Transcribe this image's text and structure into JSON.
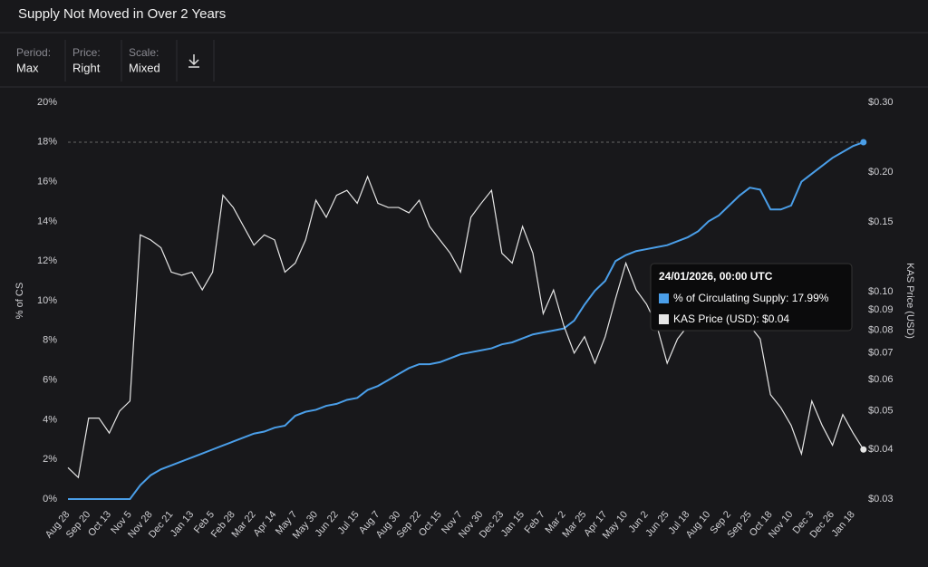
{
  "header": {
    "title": "Supply Not Moved in Over 2 Years",
    "controls": [
      {
        "key": "Period:",
        "value": "Max"
      },
      {
        "key": "Price:",
        "value": "Right"
      },
      {
        "key": "Scale:",
        "value": "Mixed"
      }
    ]
  },
  "chart_data": {
    "type": "line",
    "ylabel": "% of CS",
    "y2label": "KAS Price (USD)",
    "categories": [
      "Aug 28",
      null,
      "Sep 20",
      null,
      "Oct 13",
      null,
      "Nov 5",
      null,
      "Nov 28",
      null,
      "Dec 21",
      null,
      "Jan 13",
      null,
      "Feb 5",
      null,
      "Feb 28",
      null,
      "Mar 22",
      null,
      "Apr 14",
      null,
      "May 7",
      null,
      "May 30",
      null,
      "Jun 22",
      null,
      "Jul 15",
      null,
      "Aug 7",
      null,
      "Aug 30",
      null,
      "Sep 22",
      null,
      "Oct 15",
      null,
      "Nov 7",
      null,
      "Nov 30",
      null,
      "Dec 23",
      null,
      "Jan 15",
      null,
      "Feb 7",
      null,
      "Mar 2",
      null,
      "Mar 25",
      null,
      "Apr 17",
      null,
      "May 10",
      null,
      "Jun 2",
      null,
      "Jun 25",
      null,
      "Jul 18",
      null,
      "Aug 10",
      null,
      "Sep 2",
      null,
      "Sep 25",
      null,
      "Oct 18",
      null,
      "Nov 10",
      null,
      "Dec 3",
      null,
      "Dec 26",
      null,
      "Jan 18",
      null
    ],
    "series": [
      {
        "color": "#4a9ee8",
        "values": [
          0,
          0,
          0,
          0,
          0,
          0,
          0,
          0.7,
          1.2,
          1.5,
          1.7,
          1.9,
          2.1,
          2.3,
          2.5,
          2.7,
          2.9,
          3.1,
          3.3,
          3.4,
          3.6,
          3.7,
          4.2,
          4.4,
          4.5,
          4.7,
          4.8,
          5.0,
          5.1,
          5.5,
          5.7,
          6.0,
          6.3,
          6.6,
          6.8,
          6.8,
          6.9,
          7.1,
          7.3,
          7.4,
          7.5,
          7.6,
          7.8,
          7.9,
          8.1,
          8.3,
          8.4,
          8.5,
          8.6,
          9.0,
          9.8,
          10.5,
          11.0,
          12.0,
          12.3,
          12.5,
          12.6,
          12.7,
          12.8,
          13.0,
          13.2,
          13.5,
          14.0,
          14.3,
          14.8,
          15.3,
          15.7,
          15.6,
          14.6,
          14.6,
          14.8,
          16.0,
          16.4,
          16.8,
          17.2,
          17.5,
          17.8,
          17.99
        ]
      },
      {
        "color": "#e6e6e6",
        "axis": "y2",
        "values": [
          0.036,
          0.034,
          0.048,
          0.048,
          0.044,
          0.05,
          0.053,
          0.139,
          0.135,
          0.129,
          0.112,
          0.11,
          0.112,
          0.101,
          0.112,
          0.175,
          0.163,
          0.146,
          0.131,
          0.139,
          0.135,
          0.112,
          0.118,
          0.135,
          0.17,
          0.154,
          0.175,
          0.18,
          0.167,
          0.195,
          0.167,
          0.163,
          0.163,
          0.158,
          0.17,
          0.146,
          0.135,
          0.125,
          0.112,
          0.154,
          0.167,
          0.18,
          0.125,
          0.118,
          0.146,
          0.125,
          0.088,
          0.101,
          0.082,
          0.07,
          0.077,
          0.066,
          0.077,
          0.096,
          0.118,
          0.101,
          0.093,
          0.082,
          0.066,
          0.076,
          0.082,
          0.086,
          0.088,
          0.09,
          0.086,
          0.088,
          0.082,
          0.076,
          0.055,
          0.051,
          0.046,
          0.039,
          0.053,
          0.046,
          0.041,
          0.049,
          0.044,
          0.04
        ]
      }
    ],
    "ylim": [
      0,
      20
    ],
    "yticks": [
      {
        "value": 0,
        "label": "0%"
      },
      {
        "value": 2,
        "label": "2%"
      },
      {
        "value": 4,
        "label": "4%"
      },
      {
        "value": 6,
        "label": "6%"
      },
      {
        "value": 8,
        "label": "8%"
      },
      {
        "value": 10,
        "label": "10%"
      },
      {
        "value": 12,
        "label": "12%"
      },
      {
        "value": 14,
        "label": "14%"
      },
      {
        "value": 16,
        "label": "16%"
      },
      {
        "value": 18,
        "label": "18%"
      },
      {
        "value": 20,
        "label": "20%"
      }
    ],
    "y2lim": [
      0.03,
      0.3
    ],
    "y2scale": "log",
    "y2ticks": [
      {
        "value": 0.03,
        "label": "$0.03"
      },
      {
        "value": 0.04,
        "label": "$0.04"
      },
      {
        "value": 0.05,
        "label": "$0.05"
      },
      {
        "value": 0.06,
        "label": "$0.06"
      },
      {
        "value": 0.07,
        "label": "$0.07"
      },
      {
        "value": 0.08,
        "label": "$0.08"
      },
      {
        "value": 0.09,
        "label": "$0.09"
      },
      {
        "value": 0.1,
        "label": "$0.10"
      },
      {
        "value": 0.15,
        "label": "$0.15"
      },
      {
        "value": 0.2,
        "label": "$0.20"
      },
      {
        "value": 0.3,
        "label": "$0.30"
      }
    ],
    "tooltip": {
      "title": "24/01/2026, 00:00 UTC",
      "rows": [
        "% of Circulating Supply: 17.99%",
        "KAS Price (USD): $0.04"
      ]
    }
  }
}
